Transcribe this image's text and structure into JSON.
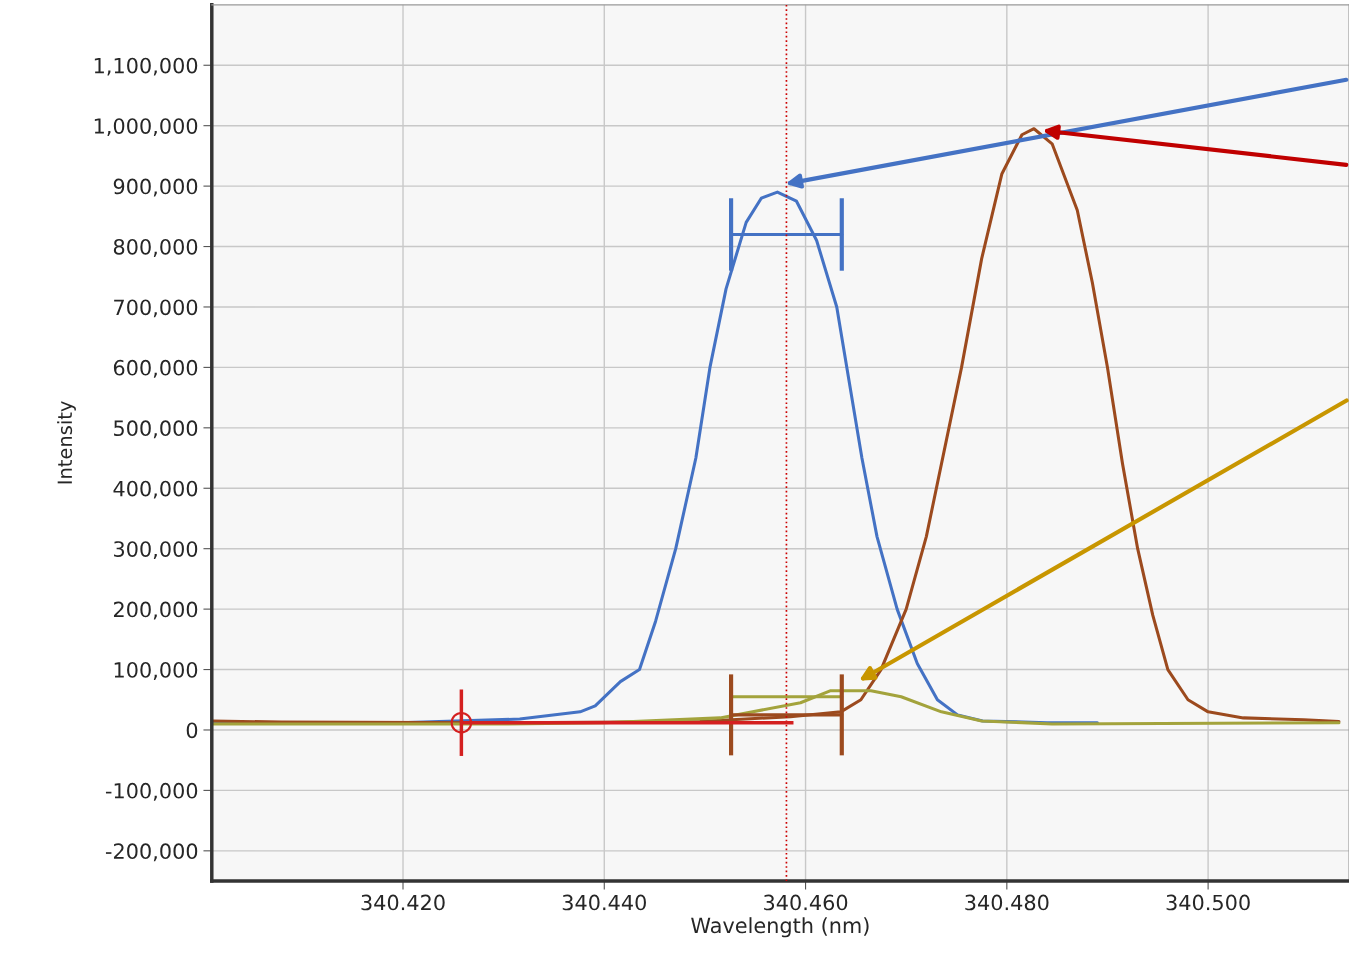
{
  "chart_data": {
    "type": "line",
    "xlabel": "Wavelength (nm)",
    "ylabel": "Intensity",
    "xlim": [
      340.401,
      340.514
    ],
    "ylim": [
      -250000,
      1200000
    ],
    "xticks": [
      {
        "value": 340.42,
        "label": "340.420"
      },
      {
        "value": 340.44,
        "label": "340.440"
      },
      {
        "value": 340.46,
        "label": "340.460"
      },
      {
        "value": 340.48,
        "label": "340.480"
      },
      {
        "value": 340.5,
        "label": "340.500"
      }
    ],
    "yticks": [
      {
        "value": -200000,
        "label": "-200,000"
      },
      {
        "value": -100000,
        "label": "-100,000"
      },
      0,
      {
        "value": 100000,
        "label": "100,000"
      },
      {
        "value": 200000,
        "label": "200,000"
      },
      {
        "value": 300000,
        "label": "300,000"
      },
      {
        "value": 400000,
        "label": "400,000"
      },
      {
        "value": 500000,
        "label": "500,000"
      },
      {
        "value": 600000,
        "label": "600,000"
      },
      {
        "value": 700000,
        "label": "700,000"
      },
      {
        "value": 800000,
        "label": "800,000"
      },
      {
        "value": 900000,
        "label": "900,000"
      },
      {
        "value": 1000000,
        "label": "1,000,000"
      },
      {
        "value": 1100000,
        "label": "1,100,000"
      }
    ],
    "grid": true,
    "legend": false,
    "marker": "none",
    "line_style": "solid",
    "series": [
      {
        "color": "#4472c4",
        "x": [
          340.4011,
          340.4197,
          340.4316,
          340.4376,
          340.4391,
          340.4416,
          340.4435,
          340.4451,
          340.4471,
          340.4491,
          340.4505,
          340.4521,
          340.4541,
          340.4556,
          340.4572,
          340.4591,
          340.4611,
          340.4631,
          340.4641,
          340.4656,
          340.4671,
          340.4691,
          340.4711,
          340.4731,
          340.4751,
          340.4776,
          340.484,
          340.489
        ],
        "values": [
          12000,
          12000,
          18000,
          30000,
          40000,
          80000,
          100000,
          180000,
          300000,
          450000,
          600000,
          730000,
          840000,
          880000,
          890000,
          875000,
          810000,
          700000,
          600000,
          450000,
          320000,
          200000,
          110000,
          50000,
          25000,
          15000,
          12000,
          12000
        ]
      },
      {
        "color": "#9c4a1e",
        "x": [
          340.4011,
          340.4079,
          340.4297,
          340.4495,
          340.4585,
          340.4635,
          340.4655,
          340.4675,
          340.47,
          340.472,
          340.474,
          340.4755,
          340.4775,
          340.4795,
          340.4815,
          340.4827,
          340.4845,
          340.487,
          340.4885,
          340.49,
          340.4915,
          340.493,
          340.4945,
          340.496,
          340.498,
          340.5,
          340.5035,
          340.5095,
          340.513
        ],
        "values": [
          15000,
          13000,
          12000,
          14000,
          22000,
          30000,
          50000,
          100000,
          200000,
          320000,
          480000,
          600000,
          780000,
          920000,
          985000,
          995000,
          970000,
          860000,
          740000,
          600000,
          440000,
          300000,
          190000,
          100000,
          50000,
          30000,
          20000,
          17000,
          14000
        ]
      },
      {
        "color": "#a3a33c",
        "x": [
          340.4011,
          340.43,
          340.44,
          340.4515,
          340.4595,
          340.4625,
          340.4665,
          340.4695,
          340.4735,
          340.4775,
          340.4845,
          340.513
        ],
        "values": [
          10000,
          10000,
          12000,
          20000,
          45000,
          65000,
          65000,
          55000,
          30000,
          15000,
          10000,
          12000
        ]
      },
      {
        "color": "#4472c4",
        "x": [
          340.4526,
          340.4636
        ],
        "values": [
          820000,
          820000
        ],
        "errors": [
          60000,
          60000
        ]
      },
      {
        "color": "#9c4a1e",
        "x": [
          340.4526,
          340.4636
        ],
        "values": [
          25000,
          25000
        ],
        "errors": [
          67000,
          67000
        ]
      },
      {
        "color": "#a3a33c",
        "x": [
          340.4526,
          340.4636
        ],
        "values": [
          55000,
          55000
        ]
      },
      {
        "type": "scatter",
        "color": "#d42020",
        "marker": "circle",
        "x": [
          340.4258
        ],
        "values": [
          12000
        ],
        "xerrors": [
          [
            340.4258,
            340.4588
          ]
        ],
        "errors": [
          55000
        ]
      }
    ],
    "ref_lines": [
      {
        "axis": "x",
        "value": 340.4581,
        "color": "#cc0000",
        "line_style": "dotted"
      }
    ]
  }
}
